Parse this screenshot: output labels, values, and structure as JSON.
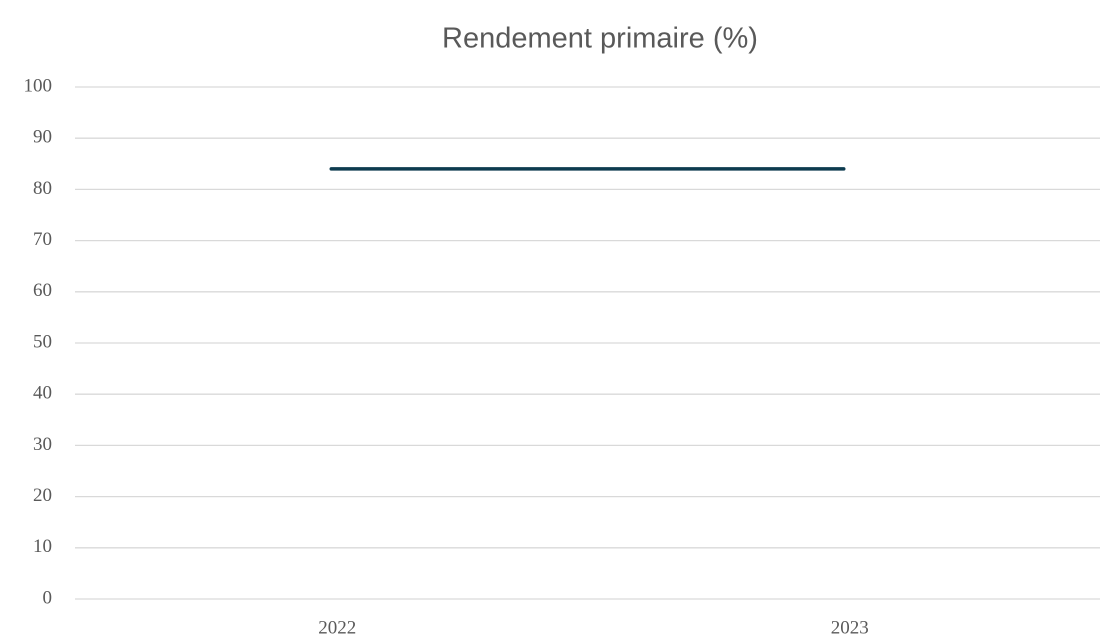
{
  "chart_data": {
    "type": "line",
    "title": "Rendement primaire (%)",
    "categories": [
      "2022",
      "2023"
    ],
    "series": [
      {
        "name": "Rendement primaire",
        "color": "#0d3b4f",
        "values": [
          84,
          84
        ]
      }
    ],
    "ylim": [
      0,
      100
    ],
    "yticks": [
      0,
      10,
      20,
      30,
      40,
      50,
      60,
      70,
      80,
      90,
      100
    ],
    "grid": true
  }
}
